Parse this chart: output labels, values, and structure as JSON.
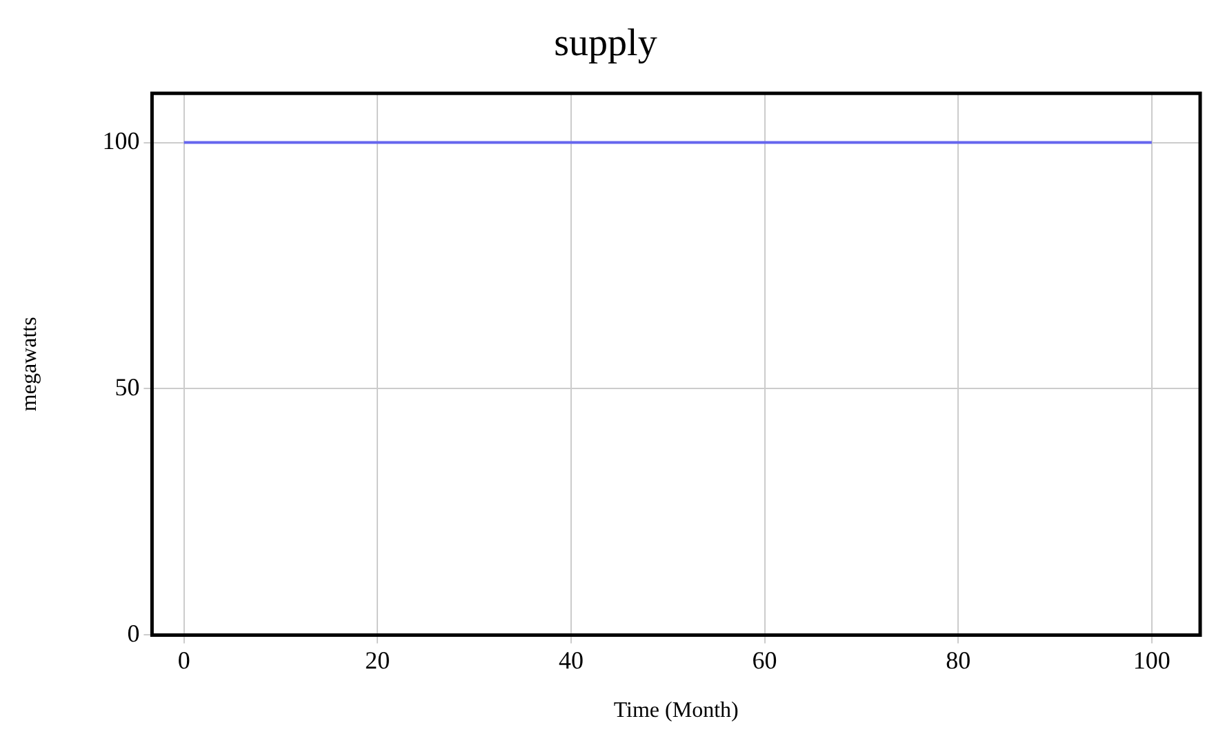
{
  "chart_data": {
    "type": "line",
    "title": "supply",
    "xlabel": "Time (Month)",
    "ylabel": "megawatts",
    "x": [
      0,
      100
    ],
    "series": [
      {
        "color": "#6666ee",
        "values": [
          100,
          100
        ]
      }
    ],
    "xlim": [
      -3.3,
      105
    ],
    "ylim": [
      0,
      110
    ],
    "xticks": [
      0,
      20,
      40,
      60,
      80,
      100
    ],
    "yticks": [
      0,
      50,
      100
    ],
    "grid": true,
    "legend": false,
    "marker": "none",
    "line_style": "solid"
  }
}
